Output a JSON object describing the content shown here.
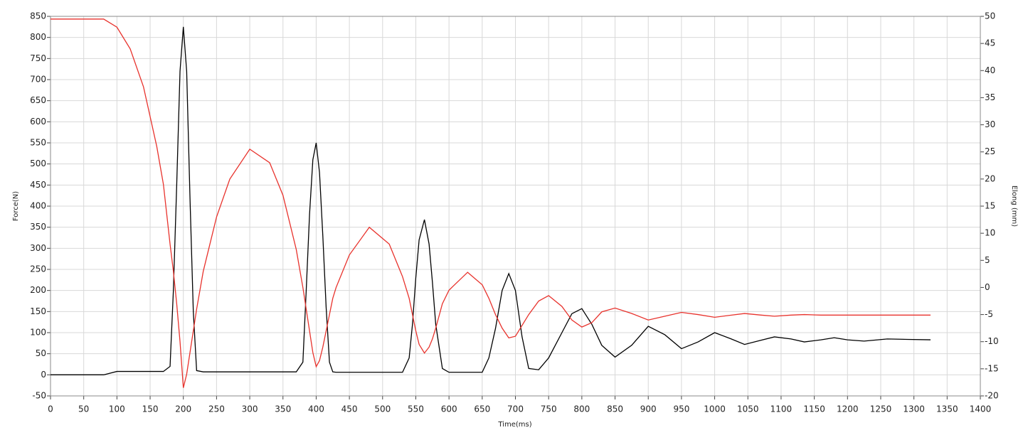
{
  "chart_data": {
    "type": "line",
    "x_label": "Time(ms)",
    "y_label": "Force(N)",
    "y2_label": "Elong (mm)",
    "x": [
      0,
      50,
      80,
      100,
      120,
      140,
      160,
      170,
      180,
      185,
      190,
      195,
      200,
      205,
      210,
      215,
      220,
      230,
      250,
      270,
      300,
      330,
      350,
      370,
      380,
      385,
      390,
      395,
      400,
      405,
      410,
      415,
      420,
      425,
      430,
      450,
      480,
      510,
      530,
      540,
      545,
      550,
      555,
      563,
      570,
      575,
      580,
      590,
      600,
      628,
      650,
      660,
      670,
      680,
      690,
      700,
      710,
      720,
      735,
      750,
      770,
      785,
      800,
      815,
      830,
      850,
      875,
      900,
      925,
      950,
      975,
      1000,
      1025,
      1045,
      1070,
      1090,
      1115,
      1135,
      1160,
      1180,
      1200,
      1225,
      1260,
      1290,
      1325
    ],
    "series": [
      {
        "name": "Force",
        "color": "#000000",
        "axis": "y",
        "values": [
          0,
          0,
          0,
          8,
          8,
          8,
          8,
          8,
          20,
          200,
          450,
          720,
          825,
          720,
          420,
          150,
          10,
          7,
          7,
          7,
          7,
          7,
          7,
          7,
          30,
          200,
          380,
          510,
          550,
          480,
          330,
          160,
          30,
          7,
          6,
          6,
          6,
          6,
          6,
          40,
          120,
          230,
          320,
          368,
          310,
          220,
          120,
          15,
          6,
          6,
          6,
          40,
          110,
          200,
          240,
          200,
          90,
          15,
          12,
          40,
          100,
          145,
          157,
          120,
          70,
          42,
          70,
          115,
          95,
          62,
          78,
          100,
          85,
          72,
          82,
          90,
          85,
          78,
          83,
          88,
          83,
          80,
          85,
          84,
          83
        ]
      },
      {
        "name": "Elong",
        "color": "#e8322c",
        "axis": "y2",
        "values": [
          49.5,
          49.5,
          49.5,
          48,
          44,
          37,
          26,
          19,
          8,
          3,
          -3,
          -10,
          -18.5,
          -16,
          -12,
          -8,
          -4,
          3,
          13,
          20,
          25.5,
          23,
          17,
          7,
          0,
          -4,
          -8,
          -12,
          -14.6,
          -13.5,
          -11,
          -8,
          -5,
          -2,
          0,
          6,
          11.1,
          8,
          2,
          -2,
          -5,
          -8,
          -10.5,
          -12.1,
          -11,
          -9.5,
          -7.5,
          -3,
          -0.5,
          2.8,
          0.5,
          -2,
          -5,
          -7.5,
          -9.3,
          -9,
          -7,
          -5,
          -2.5,
          -1.5,
          -3.5,
          -6,
          -7.3,
          -6.5,
          -4.5,
          -3.8,
          -4.8,
          -6.0,
          -5.3,
          -4.6,
          -5,
          -5.5,
          -5.1,
          -4.8,
          -5.1,
          -5.3,
          -5.1,
          -5.0,
          -5.1,
          -5.1,
          -5.1,
          -5.1,
          -5.1,
          -5.1,
          -5.1
        ]
      }
    ],
    "xlim": [
      0,
      1400
    ],
    "xticks": [
      0,
      50,
      100,
      150,
      200,
      250,
      300,
      350,
      400,
      450,
      500,
      550,
      600,
      650,
      700,
      750,
      800,
      850,
      900,
      950,
      1000,
      1050,
      1100,
      1150,
      1200,
      1250,
      1300,
      1350,
      1400
    ],
    "ylim": [
      -50,
      850
    ],
    "yticks": [
      -50,
      0,
      50,
      100,
      150,
      200,
      250,
      300,
      350,
      400,
      450,
      500,
      550,
      600,
      650,
      700,
      750,
      800,
      850
    ],
    "y2lim": [
      -20,
      50
    ],
    "y2ticks": [
      -20,
      -15,
      -10,
      -5,
      0,
      5,
      10,
      15,
      20,
      25,
      30,
      35,
      40,
      45,
      50
    ],
    "grid": true
  }
}
